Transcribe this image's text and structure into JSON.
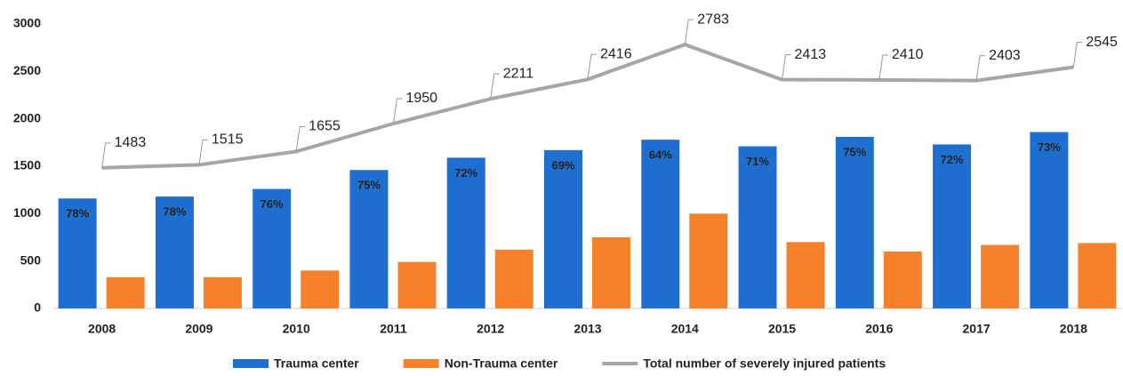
{
  "chart_data": {
    "type": "bar-line",
    "categories": [
      "2008",
      "2009",
      "2010",
      "2011",
      "2012",
      "2013",
      "2014",
      "2015",
      "2016",
      "2017",
      "2018"
    ],
    "series": [
      {
        "name": "Trauma center",
        "color": "#1f6fd1",
        "type": "bar",
        "values": [
          1160,
          1180,
          1260,
          1460,
          1590,
          1670,
          1780,
          1710,
          1810,
          1730,
          1860
        ],
        "point_labels": [
          "78%",
          "78%",
          "76%",
          "75%",
          "72%",
          "69%",
          "64%",
          "71%",
          "75%",
          "72%",
          "73%"
        ]
      },
      {
        "name": "Non-Trauma center",
        "color": "#f5812a",
        "type": "bar",
        "values": [
          330,
          330,
          400,
          490,
          620,
          750,
          1000,
          700,
          600,
          670,
          690
        ]
      },
      {
        "name": "Total number of severely injured patients",
        "color": "#a6a6a6",
        "type": "line",
        "values": [
          1483,
          1515,
          1655,
          1950,
          2211,
          2416,
          2783,
          2413,
          2410,
          2403,
          2545
        ],
        "show_values": true
      }
    ],
    "ylim": [
      0,
      3000
    ],
    "yticks": [
      0,
      500,
      1000,
      1500,
      2000,
      2500,
      3000
    ],
    "grid": false,
    "legend": "bottom"
  }
}
